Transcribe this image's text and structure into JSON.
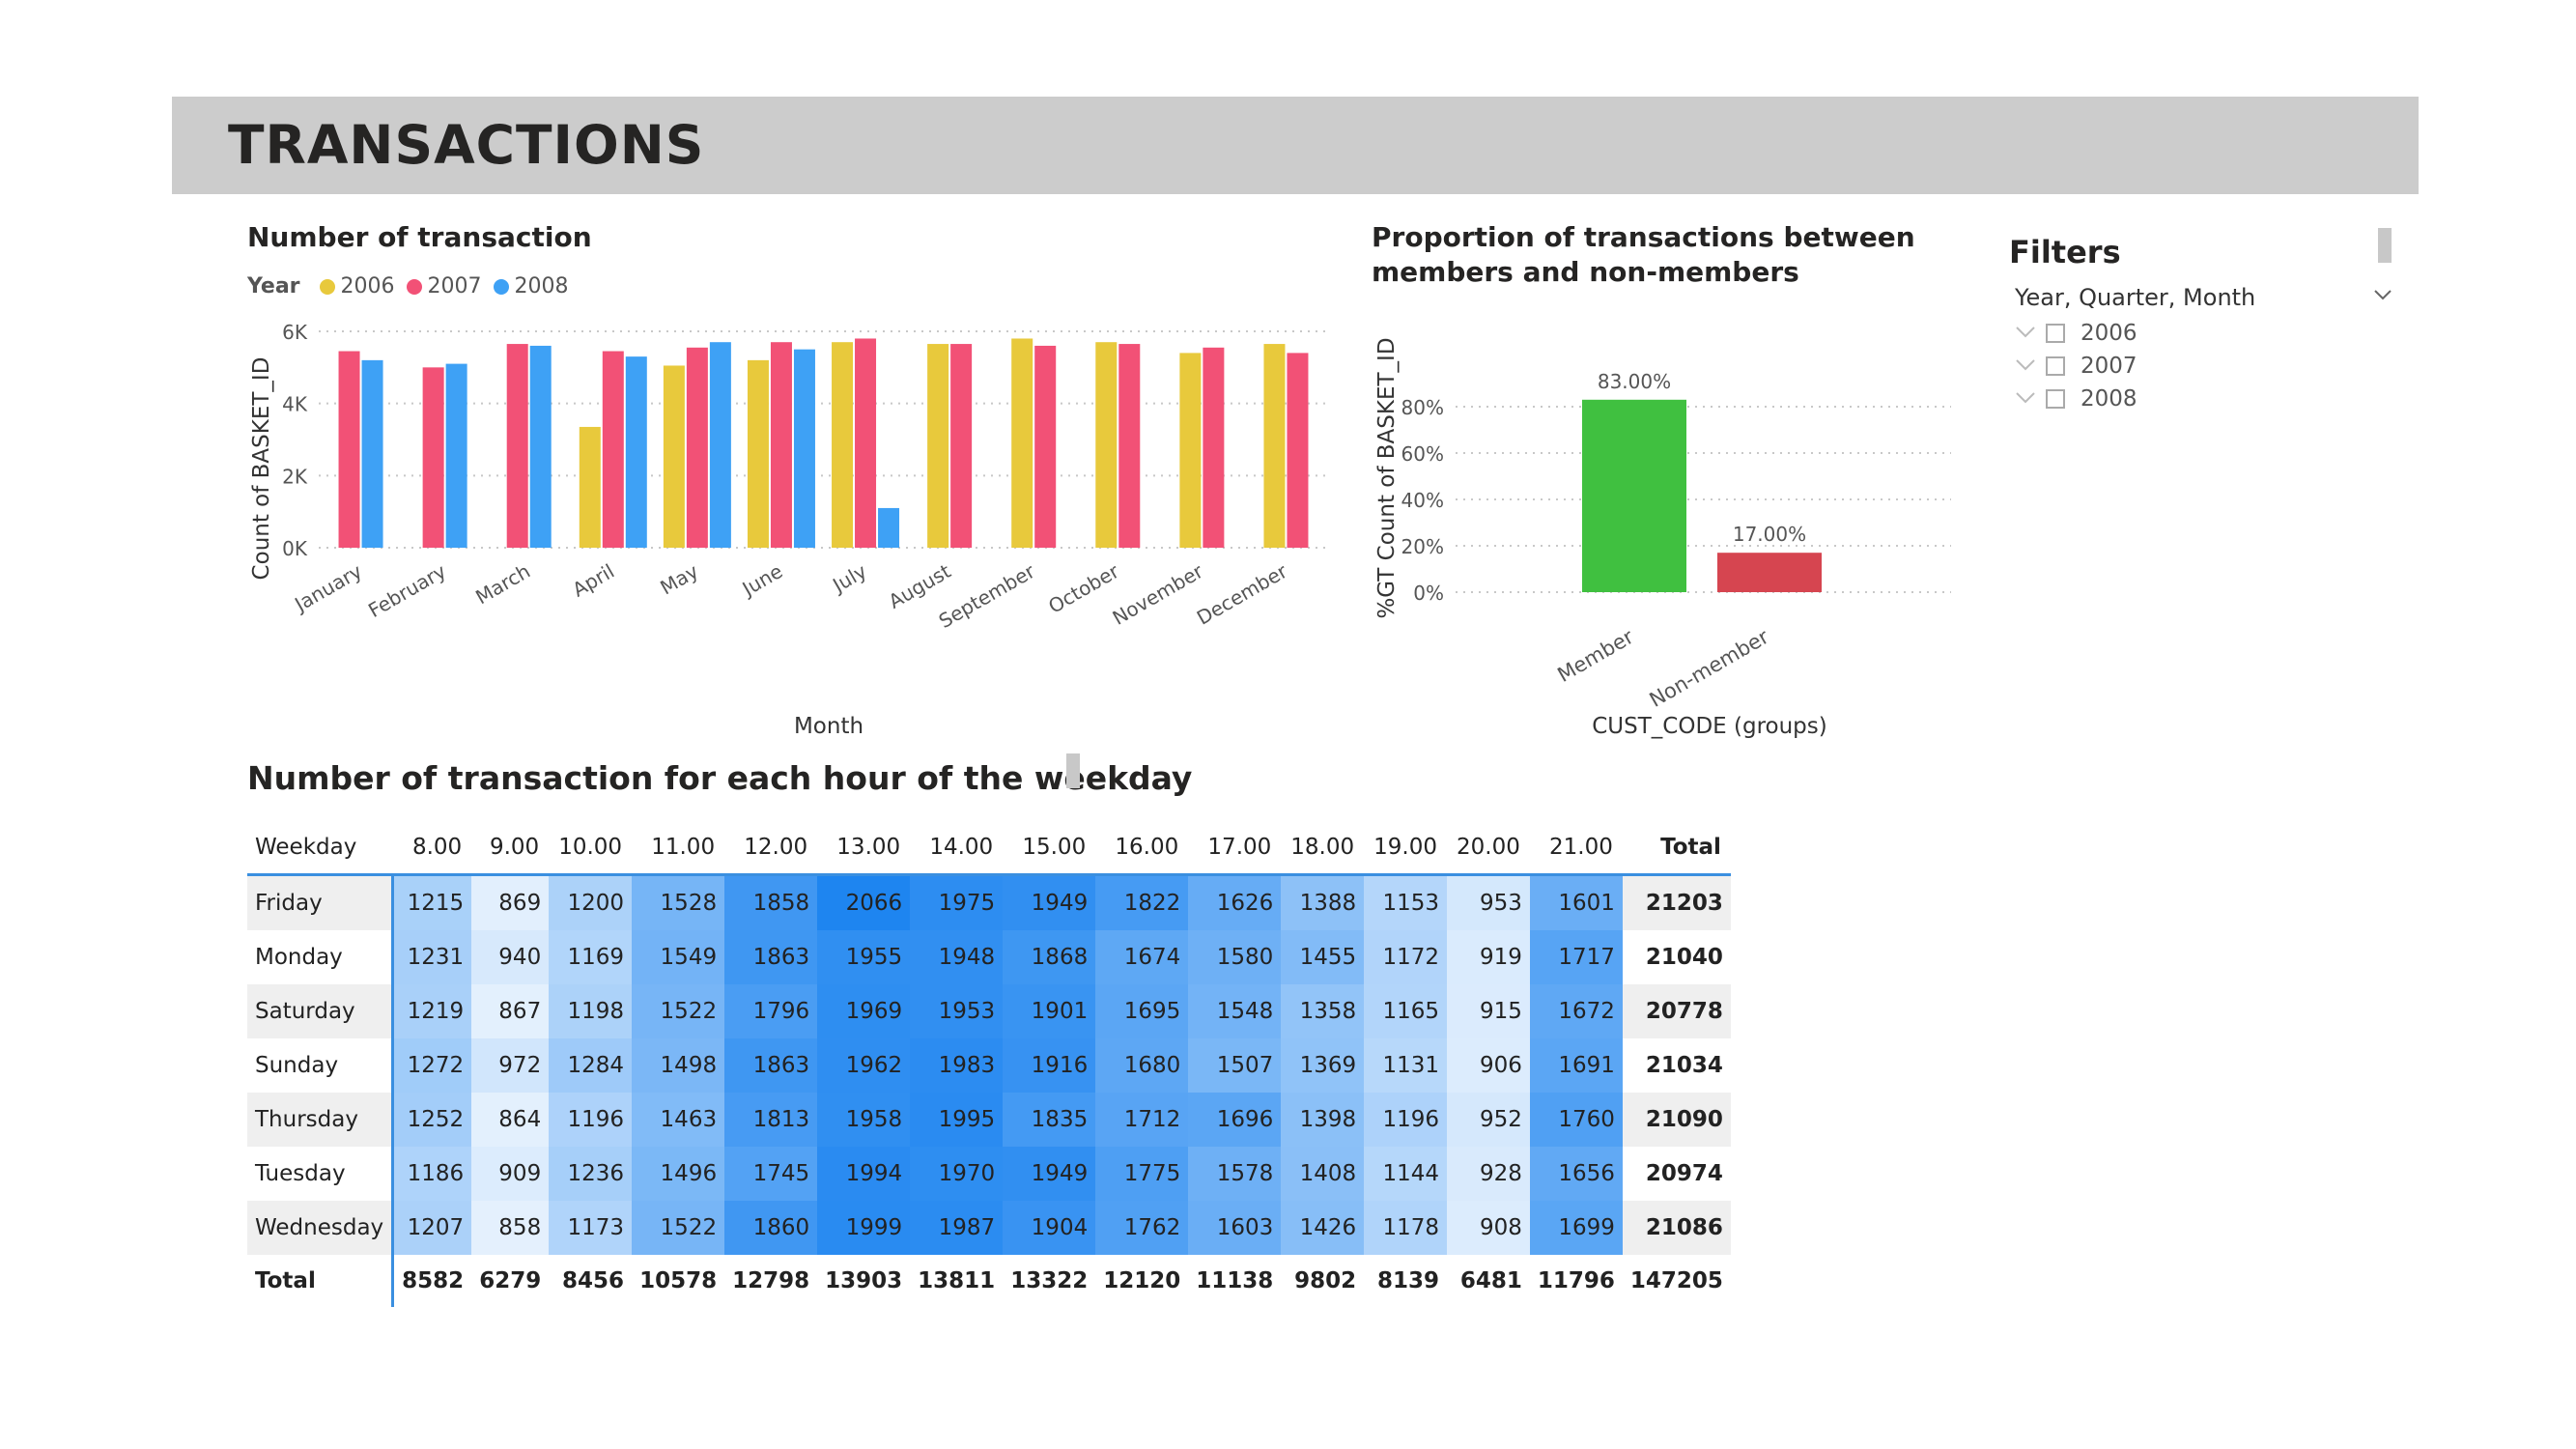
{
  "header": {
    "title": "TRANSACTIONS"
  },
  "colors": {
    "y2006": "#e8c93c",
    "y2007": "#f25176",
    "y2008": "#3ea1f5",
    "member": "#40c040",
    "nonmember": "#d64550",
    "heat_low": "#ffffff",
    "heat_high": "#1e85f0"
  },
  "chart_data": [
    {
      "type": "bar",
      "title": "Number of transaction",
      "legend_title": "Year",
      "legend_position": "top-left",
      "xlabel": "Month",
      "ylabel": "Count of BASKET_ID",
      "ylim": [
        0,
        6000
      ],
      "yticks": [
        "0K",
        "2K",
        "4K",
        "6K"
      ],
      "grid": true,
      "categories": [
        "January",
        "February",
        "March",
        "April",
        "May",
        "June",
        "July",
        "August",
        "September",
        "October",
        "November",
        "December"
      ],
      "series": [
        {
          "name": "2006",
          "values": [
            null,
            null,
            null,
            3350,
            5050,
            5200,
            5700,
            5650,
            5800,
            5700,
            5400,
            5650
          ]
        },
        {
          "name": "2007",
          "values": [
            5450,
            5000,
            5650,
            5450,
            5550,
            5700,
            5800,
            5650,
            5600,
            5650,
            5550,
            5400
          ]
        },
        {
          "name": "2008",
          "values": [
            5200,
            5100,
            5600,
            5300,
            5700,
            5500,
            1100,
            null,
            null,
            null,
            null,
            null
          ]
        }
      ]
    },
    {
      "type": "bar",
      "title": "Proportion of transactions between members and non-members",
      "title_lines": [
        "Proportion of transactions between",
        "members and non-members"
      ],
      "xlabel": "CUST_CODE (groups)",
      "ylabel": "%GT Count of BASKET_ID",
      "ylim": [
        0,
        100
      ],
      "yticks": [
        "0%",
        "20%",
        "40%",
        "60%",
        "80%"
      ],
      "grid": true,
      "categories": [
        "Member",
        "Non-member"
      ],
      "values": [
        83.0,
        17.0
      ],
      "data_labels": [
        "83.00%",
        "17.00%"
      ]
    },
    {
      "type": "heatmap",
      "title": "Number of transaction for each hour of the weekday",
      "row_header": "Weekday",
      "columns": [
        "8.00",
        "9.00",
        "10.00",
        "11.00",
        "12.00",
        "13.00",
        "14.00",
        "15.00",
        "16.00",
        "17.00",
        "18.00",
        "19.00",
        "20.00",
        "21.00"
      ],
      "total_label": "Total",
      "rows": [
        {
          "label": "Friday",
          "values": [
            1215,
            869,
            1200,
            1528,
            1858,
            2066,
            1975,
            1949,
            1822,
            1626,
            1388,
            1153,
            953,
            1601
          ],
          "total": 21203
        },
        {
          "label": "Monday",
          "values": [
            1231,
            940,
            1169,
            1549,
            1863,
            1955,
            1948,
            1868,
            1674,
            1580,
            1455,
            1172,
            919,
            1717
          ],
          "total": 21040
        },
        {
          "label": "Saturday",
          "values": [
            1219,
            867,
            1198,
            1522,
            1796,
            1969,
            1953,
            1901,
            1695,
            1548,
            1358,
            1165,
            915,
            1672
          ],
          "total": 20778
        },
        {
          "label": "Sunday",
          "values": [
            1272,
            972,
            1284,
            1498,
            1863,
            1962,
            1983,
            1916,
            1680,
            1507,
            1369,
            1131,
            906,
            1691
          ],
          "total": 21034
        },
        {
          "label": "Thursday",
          "values": [
            1252,
            864,
            1196,
            1463,
            1813,
            1958,
            1995,
            1835,
            1712,
            1696,
            1398,
            1196,
            952,
            1760
          ],
          "total": 21090
        },
        {
          "label": "Tuesday",
          "values": [
            1186,
            909,
            1236,
            1496,
            1745,
            1994,
            1970,
            1949,
            1775,
            1578,
            1408,
            1144,
            928,
            1656
          ],
          "total": 20974
        },
        {
          "label": "Wednesday",
          "values": [
            1207,
            858,
            1173,
            1522,
            1860,
            1999,
            1987,
            1904,
            1762,
            1603,
            1426,
            1178,
            908,
            1699
          ],
          "total": 21086
        }
      ],
      "totals": {
        "label": "Total",
        "values": [
          8582,
          6279,
          8456,
          10578,
          12798,
          13903,
          13811,
          13322,
          12120,
          11138,
          9802,
          8139,
          6481,
          11796
        ],
        "grand_total": 147205
      }
    }
  ],
  "filters": {
    "title": "Filters",
    "field": "Year, Quarter, Month",
    "options": [
      "2006",
      "2007",
      "2008"
    ]
  }
}
